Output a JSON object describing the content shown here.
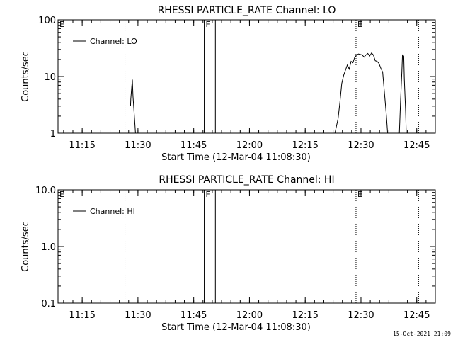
{
  "chart_data": [
    {
      "type": "line",
      "title": "RHESSI PARTICLE_RATE Channel: LO",
      "xlabel": "Start Time (12-Mar-04 11:08:30)",
      "ylabel": "Counts/sec",
      "y_scale": "log",
      "ylim": [
        1,
        100
      ],
      "y_ticks": [
        1,
        10,
        100
      ],
      "y_tick_labels": [
        "1",
        "10",
        "100"
      ],
      "x_range": [
        "11:08:30",
        "12:50:00"
      ],
      "x_ticks": [
        "11:15",
        "11:30",
        "11:45",
        "12:00",
        "12:15",
        "12:30",
        "12:45"
      ],
      "legend": {
        "label": "Channel: LO",
        "position": "top-left"
      },
      "markers": [
        {
          "label": "E",
          "time": "11:08:30",
          "style": "dotted"
        },
        {
          "label": "",
          "time": "11:26:30",
          "style": "dotted"
        },
        {
          "label": "F",
          "time": "11:47:50",
          "style": "solid"
        },
        {
          "label": "",
          "time": "11:50:50",
          "style": "solid"
        },
        {
          "label": "E",
          "time": "12:28:40",
          "style": "dotted"
        },
        {
          "label": "",
          "time": "12:45:30",
          "style": "dotted"
        }
      ],
      "series": [
        {
          "name": "Channel: LO",
          "segments": [
            [
              [
                "11:28:00",
                3.0
              ],
              [
                "11:28:05",
                4.0
              ],
              [
                "11:28:20",
                6.5
              ],
              [
                "11:28:30",
                8.8
              ],
              [
                "11:28:40",
                4.5
              ],
              [
                "11:29:10",
                1.5
              ],
              [
                "11:29:20",
                1.0
              ]
            ],
            [
              [
                "12:23:00",
                1.0
              ],
              [
                "12:23:50",
                1.8
              ],
              [
                "12:24:20",
                3.5
              ],
              [
                "12:24:50",
                7.5
              ],
              [
                "12:25:20",
                10.5
              ],
              [
                "12:25:50",
                13.0
              ],
              [
                "12:26:20",
                16.0
              ],
              [
                "12:26:50",
                13.5
              ],
              [
                "12:27:20",
                18.5
              ],
              [
                "12:27:50",
                17.5
              ],
              [
                "12:28:20",
                22.0
              ],
              [
                "12:28:50",
                24.0
              ],
              [
                "12:29:20",
                25.0
              ],
              [
                "12:29:50",
                24.5
              ],
              [
                "12:30:20",
                24.0
              ],
              [
                "12:30:50",
                22.0
              ],
              [
                "12:31:20",
                24.0
              ],
              [
                "12:31:50",
                25.5
              ],
              [
                "12:32:20",
                23.0
              ],
              [
                "12:32:50",
                26.0
              ],
              [
                "12:33:20",
                24.0
              ],
              [
                "12:33:50",
                19.0
              ],
              [
                "12:34:20",
                18.5
              ],
              [
                "12:34:50",
                17.0
              ],
              [
                "12:35:20",
                14.0
              ],
              [
                "12:35:50",
                12.0
              ],
              [
                "12:36:20",
                5.0
              ],
              [
                "12:36:50",
                2.0
              ],
              [
                "12:37:10",
                1.0
              ]
            ],
            [
              [
                "12:40:20",
                1.0
              ],
              [
                "12:40:40",
                4.0
              ],
              [
                "12:41:00",
                12.0
              ],
              [
                "12:41:10",
                24.0
              ],
              [
                "12:41:30",
                23.0
              ],
              [
                "12:41:40",
                9.0
              ],
              [
                "12:42:00",
                2.5
              ],
              [
                "12:42:10",
                1.0
              ]
            ]
          ]
        }
      ]
    },
    {
      "type": "line",
      "title": "RHESSI PARTICLE_RATE Channel: HI",
      "xlabel": "Start Time (12-Mar-04 11:08:30)",
      "ylabel": "Counts/sec",
      "y_scale": "log",
      "ylim": [
        0.1,
        10
      ],
      "y_ticks": [
        0.1,
        1,
        10
      ],
      "y_tick_labels": [
        "0.1",
        "1.0",
        "10.0"
      ],
      "x_range": [
        "11:08:30",
        "12:50:00"
      ],
      "x_ticks": [
        "11:15",
        "11:30",
        "11:45",
        "12:00",
        "12:15",
        "12:30",
        "12:45"
      ],
      "legend": {
        "label": "Channel: HI",
        "position": "top-left"
      },
      "markers": [
        {
          "label": "E",
          "time": "11:08:30",
          "style": "dotted"
        },
        {
          "label": "",
          "time": "11:26:30",
          "style": "dotted"
        },
        {
          "label": "F",
          "time": "11:47:50",
          "style": "solid"
        },
        {
          "label": "",
          "time": "11:50:50",
          "style": "solid"
        },
        {
          "label": "E",
          "time": "12:28:40",
          "style": "dotted"
        },
        {
          "label": "",
          "time": "12:45:30",
          "style": "dotted"
        }
      ],
      "series": [
        {
          "name": "Channel: HI",
          "segments": []
        }
      ]
    }
  ],
  "footer": {
    "timestamp": "15-Oct-2021 21:09"
  }
}
